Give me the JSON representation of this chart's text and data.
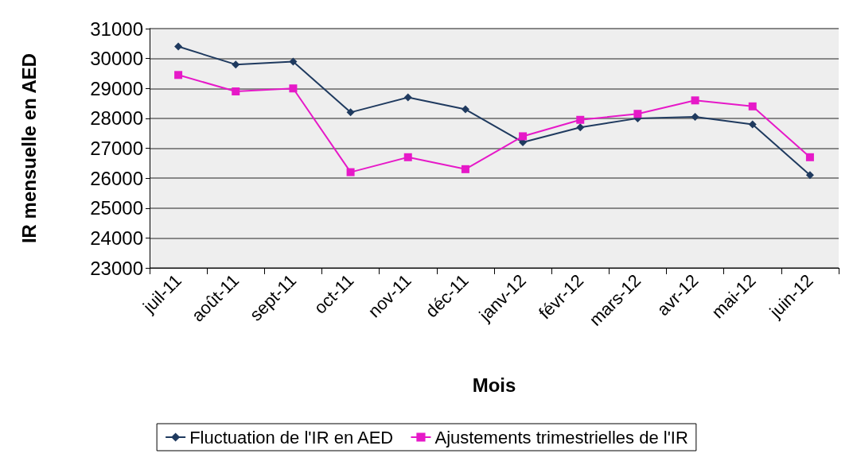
{
  "chart_data": {
    "type": "line",
    "xlabel": "Mois",
    "ylabel": "IR mensuelle en AED",
    "categories": [
      "juil-11",
      "août-11",
      "sept-11",
      "oct-11",
      "nov-11",
      "déc-11",
      "janv-12",
      "févr-12",
      "mars-12",
      "avr-12",
      "mai-12",
      "juin-12"
    ],
    "series": [
      {
        "name": "Fluctuation de l'IR en AED",
        "color": "#1f3a5f",
        "marker": "diamond",
        "values": [
          30400,
          29800,
          29900,
          28200,
          28700,
          28300,
          27200,
          27700,
          28000,
          28050,
          27800,
          26100
        ]
      },
      {
        "name": "Ajustements trimestrielles de l'IR",
        "color": "#e619c8",
        "marker": "square",
        "values": [
          29450,
          28900,
          29000,
          26200,
          26700,
          26300,
          27400,
          27950,
          28150,
          28600,
          28400,
          26700
        ]
      }
    ],
    "ylim": [
      23000,
      31000
    ],
    "yticks": [
      23000,
      24000,
      25000,
      26000,
      27000,
      28000,
      29000,
      30000,
      31000
    ],
    "grid": "y",
    "legend": "bottom",
    "line_style": "solid"
  }
}
